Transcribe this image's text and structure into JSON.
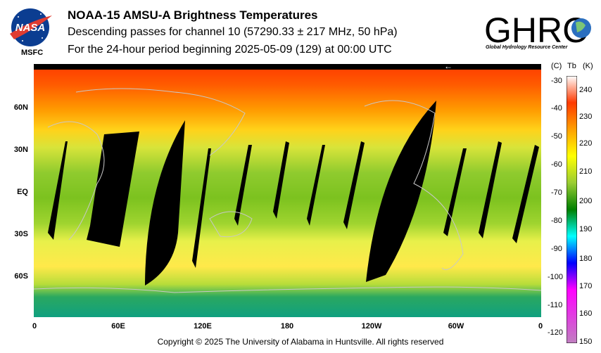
{
  "header": {
    "title": "NOAA-15 AMSU-A Brightness Temperatures",
    "subtitle": "Descending passes for channel 10 (57290.33 ± 217 MHz, 50 hPa)",
    "period": "For the 24-hour period beginning 2025-05-09 (129) at 00:00 UTC"
  },
  "logos": {
    "nasa_text": "MSFC",
    "nasa_wordmark": "NASA",
    "ghrc_wordmark": "GHRC",
    "ghrc_sub": "Global Hydrology Resource Center"
  },
  "map": {
    "lat_labels": [
      "60N",
      "30N",
      "EQ",
      "30S",
      "60S"
    ],
    "lon_labels": [
      "0",
      "60E",
      "120E",
      "180",
      "120W",
      "60W",
      "0"
    ],
    "arrow": "←"
  },
  "colorbar": {
    "units_c": "(C)",
    "units_tb": "Tb",
    "units_k": "(K)",
    "celsius_ticks": [
      "-30",
      "-40",
      "-50",
      "-60",
      "-70",
      "-80",
      "-90",
      "-100",
      "-110",
      "-120"
    ],
    "kelvin_ticks": [
      "240",
      "230",
      "220",
      "210",
      "200",
      "190",
      "180",
      "170",
      "160",
      "150"
    ],
    "colors": [
      "#ffffff",
      "#ff3a00",
      "#ffa000",
      "#ffff00",
      "#9acd32",
      "#008000",
      "#00ffff",
      "#0000ff",
      "#ff00ff",
      "#c080c0"
    ]
  },
  "footer": {
    "copyright": "Copyright © 2025 The University of Alabama in Huntsville.  All rights reserved"
  }
}
